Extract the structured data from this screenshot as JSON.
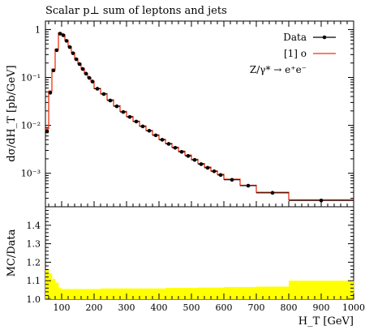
{
  "chart_data": [
    {
      "type": "line",
      "title": "Scalar p⊥ sum of leptons and jets",
      "xlabel": "H_T [GeV]",
      "ylabel": "dσ/dH_T [pb/GeV]",
      "xlim": [
        50,
        1000
      ],
      "ylim": [
        0.0002,
        1.5
      ],
      "yscale": "log",
      "ytick_labels": [
        "1",
        "10⁻¹",
        "10⁻²",
        "10⁻³"
      ],
      "legend_position": "top-right",
      "annotation": "Z/γ* → e⁺e⁻",
      "bin_edges": [
        50,
        60,
        70,
        80,
        90,
        100,
        110,
        120,
        130,
        140,
        150,
        160,
        170,
        180,
        190,
        200,
        220,
        240,
        260,
        280,
        300,
        320,
        340,
        360,
        380,
        400,
        420,
        440,
        460,
        480,
        500,
        520,
        540,
        560,
        580,
        600,
        650,
        700,
        800,
        1000
      ],
      "series": [
        {
          "name": "Data",
          "style": "points",
          "x": [
            55,
            65,
            75,
            85,
            95,
            105,
            115,
            125,
            135,
            145,
            155,
            165,
            175,
            185,
            195,
            210,
            230,
            250,
            270,
            290,
            310,
            330,
            350,
            370,
            390,
            410,
            430,
            450,
            470,
            490,
            510,
            530,
            550,
            570,
            590,
            625,
            675,
            750,
            900
          ],
          "values": [
            0.0075,
            0.048,
            0.14,
            0.37,
            0.82,
            0.76,
            0.58,
            0.43,
            0.32,
            0.24,
            0.19,
            0.15,
            0.12,
            0.098,
            0.082,
            0.058,
            0.045,
            0.033,
            0.025,
            0.019,
            0.015,
            0.012,
            0.0095,
            0.0077,
            0.0062,
            0.005,
            0.0041,
            0.0034,
            0.0028,
            0.0023,
            0.0019,
            0.00155,
            0.0013,
            0.0011,
            0.00092,
            0.00073,
            0.00055,
            0.00039,
            0.00027
          ]
        },
        {
          "name": "[1] o",
          "style": "step",
          "color": "#ee3311",
          "values": [
            0.0085,
            0.052,
            0.15,
            0.39,
            0.85,
            0.78,
            0.6,
            0.44,
            0.33,
            0.245,
            0.195,
            0.155,
            0.122,
            0.1,
            0.084,
            0.059,
            0.046,
            0.034,
            0.0255,
            0.0195,
            0.0153,
            0.0122,
            0.0097,
            0.0078,
            0.0063,
            0.0051,
            0.0042,
            0.0035,
            0.0029,
            0.0024,
            0.00195,
            0.0016,
            0.00135,
            0.00112,
            0.00095,
            0.00075,
            0.00056,
            0.0004,
            0.00028
          ]
        }
      ]
    },
    {
      "type": "area",
      "xlabel": "H_T [GeV]",
      "ylabel": "MC/Data",
      "xlim": [
        50,
        1000
      ],
      "ylim": [
        1.0,
        1.5
      ],
      "ytick_labels": [
        "1.0",
        "1.1",
        "1.2",
        "1.3",
        "1.4"
      ],
      "xtick_labels": [
        "100",
        "200",
        "300",
        "400",
        "500",
        "600",
        "700",
        "800",
        "900",
        "1000"
      ],
      "band_color": "#ffff00",
      "bin_edges": [
        50,
        60,
        70,
        80,
        90,
        100,
        110,
        120,
        130,
        140,
        150,
        160,
        170,
        180,
        190,
        200,
        220,
        240,
        260,
        280,
        300,
        320,
        340,
        360,
        380,
        400,
        420,
        440,
        460,
        480,
        500,
        520,
        540,
        560,
        580,
        600,
        650,
        700,
        800,
        1000
      ],
      "band_upper": [
        1.16,
        1.14,
        1.11,
        1.09,
        1.06,
        1.055,
        1.055,
        1.055,
        1.055,
        1.055,
        1.055,
        1.055,
        1.055,
        1.055,
        1.055,
        1.055,
        1.058,
        1.058,
        1.058,
        1.058,
        1.058,
        1.058,
        1.058,
        1.058,
        1.058,
        1.058,
        1.061,
        1.061,
        1.061,
        1.061,
        1.061,
        1.063,
        1.063,
        1.063,
        1.063,
        1.066,
        1.066,
        1.068,
        1.1
      ]
    }
  ]
}
